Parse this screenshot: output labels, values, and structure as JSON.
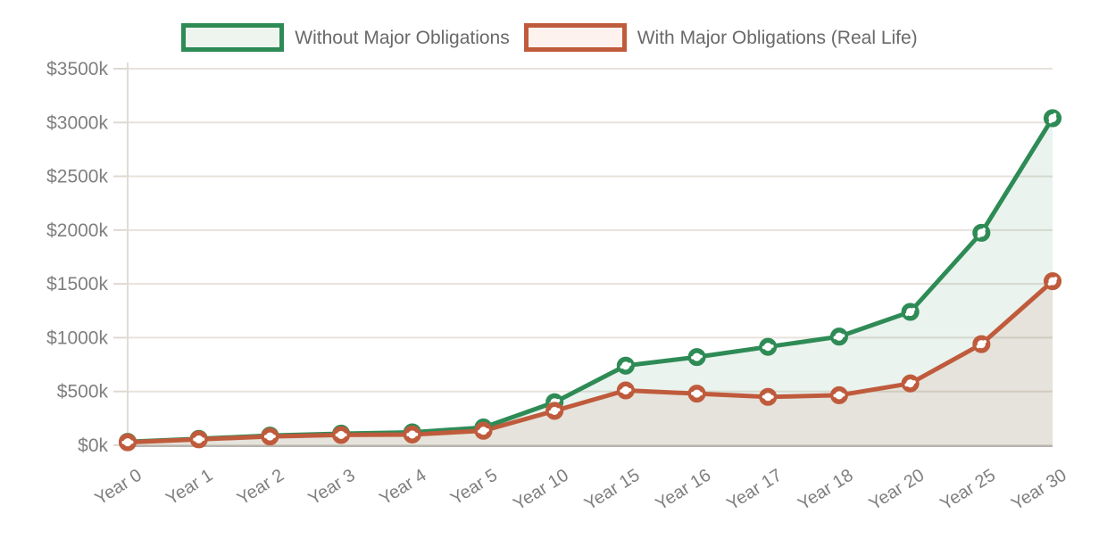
{
  "chart_data": {
    "type": "line",
    "title": "",
    "categories": [
      "Year 0",
      "Year 1",
      "Year 2",
      "Year 3",
      "Year 4",
      "Year 5",
      "Year 10",
      "Year 15",
      "Year 16",
      "Year 17",
      "Year 18",
      "Year 20",
      "Year 25",
      "Year 30"
    ],
    "series": [
      {
        "name": "Without Major Obligations",
        "color": "#2e8b56",
        "fill_color": "rgba(46,139,86,0.10)",
        "swatch_fill": "#eef5ef",
        "values": [
          32,
          60,
          90,
          108,
          120,
          165,
          400,
          740,
          820,
          915,
          1010,
          1240,
          1975,
          3040
        ]
      },
      {
        "name": "With Major Obligations (Real Life)",
        "color": "#bf5b3c",
        "fill_color": "rgba(191,91,60,0.10)",
        "swatch_fill": "#fdf2ee",
        "values": [
          28,
          55,
          82,
          96,
          100,
          135,
          320,
          510,
          480,
          450,
          465,
          575,
          940,
          1525
        ]
      }
    ],
    "y_axis": {
      "min": 0,
      "max": 3500,
      "step": 500,
      "unit": "$k",
      "tick_labels": [
        "$0k",
        "$500k",
        "$1000k",
        "$1500k",
        "$2000k",
        "$2500k",
        "$3000k",
        "$3500k"
      ]
    },
    "legend_position": "top",
    "grid": "horizontal",
    "axis_text_color": "#7f7f7f",
    "grid_color": "#e7e3dc",
    "tick_color": "#ddd9d2",
    "axis_line_color": "#e0dcd5",
    "baseline_color": "#b7b4ae",
    "marker_style": "ring-with-dash"
  }
}
